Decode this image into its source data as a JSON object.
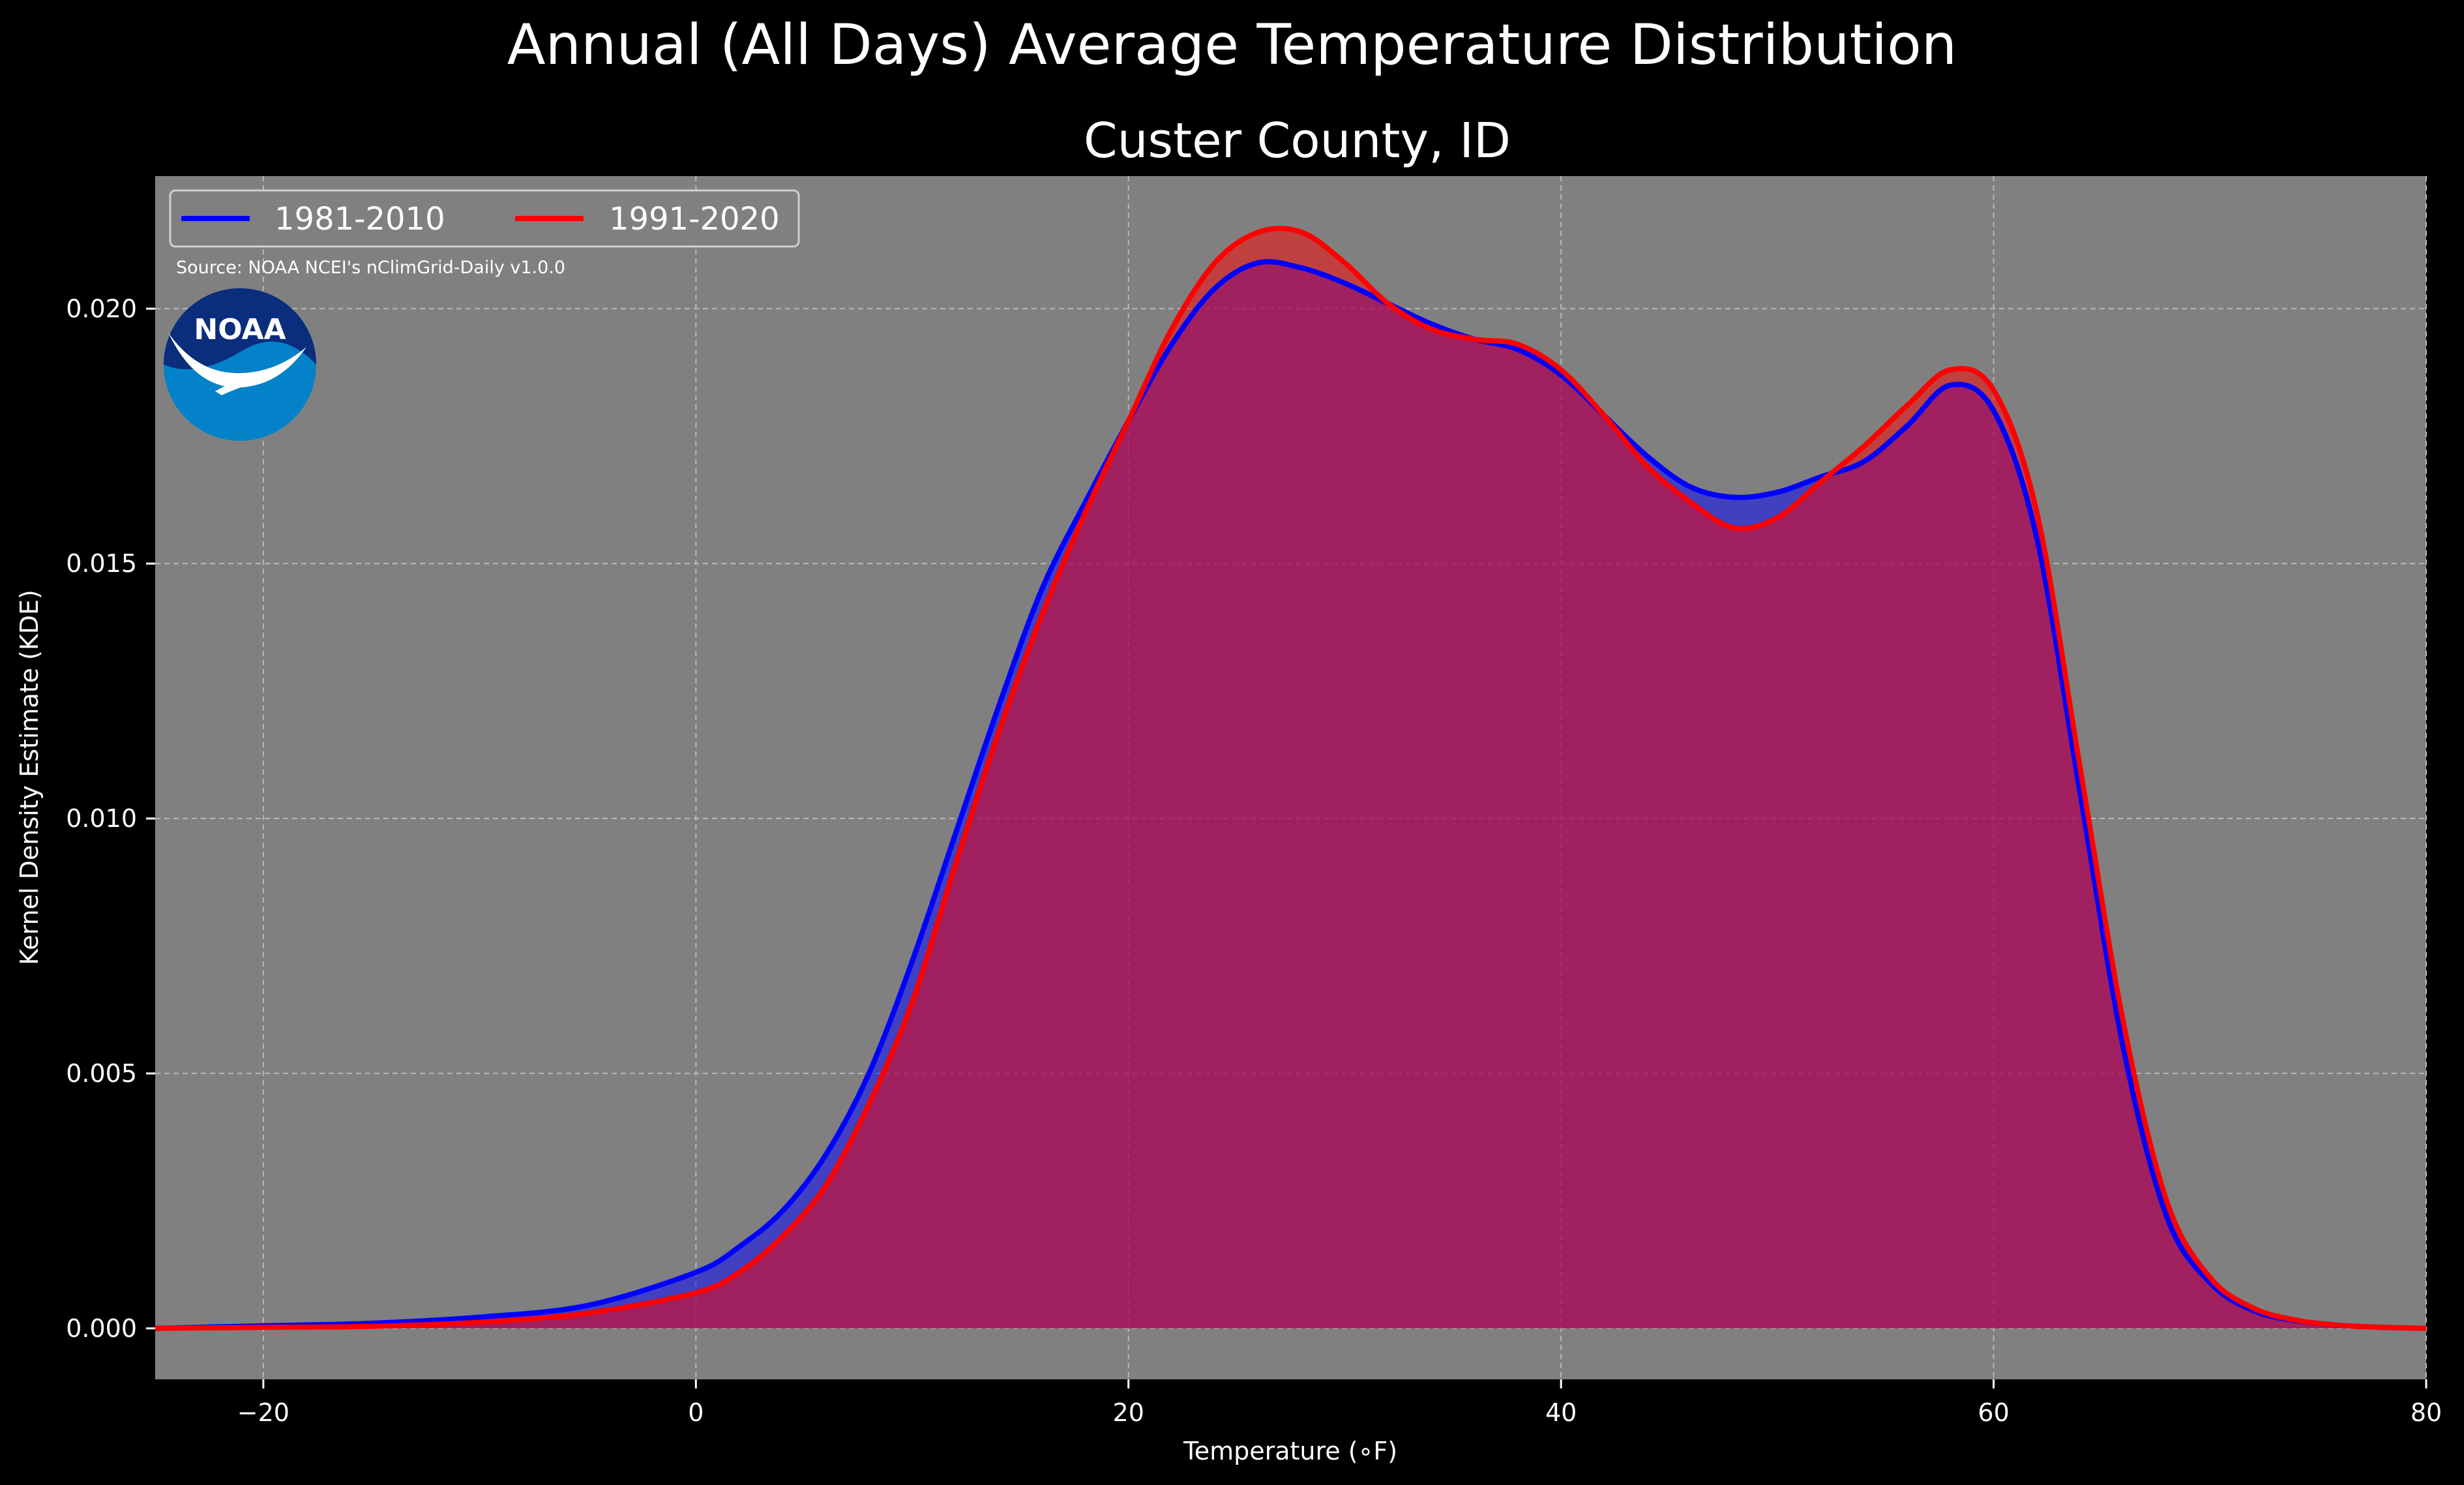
{
  "suptitle": "Annual (All Days) Average Temperature Distribution",
  "subtitle": "Custer County, ID",
  "source_note": "Source: NOAA NCEI's nClimGrid-Daily v1.0.0",
  "logo_text": "NOAA",
  "colors": {
    "background": "#000000",
    "plot_bg": "#808080",
    "series_1981": "#0000ff",
    "series_1991": "#ff0000",
    "noaa_dark": "#0a2d7c",
    "noaa_light": "#0482c9"
  },
  "chart_data": {
    "type": "area",
    "title": "Custer County, ID",
    "xlabel": "Temperature (∘F)",
    "ylabel": "Kernel Density Estimate (KDE)",
    "xlim": [
      -25,
      80
    ],
    "ylim": [
      -0.001,
      0.0226
    ],
    "xticks": [
      -20,
      0,
      20,
      40,
      60,
      80
    ],
    "xtick_labels": [
      "−20",
      "0",
      "20",
      "40",
      "60",
      "80"
    ],
    "yticks": [
      0.0,
      0.005,
      0.01,
      0.015,
      0.02
    ],
    "ytick_labels": [
      "0.000",
      "0.005",
      "0.010",
      "0.015",
      "0.020"
    ],
    "grid": true,
    "legend_position": "top-left",
    "series": [
      {
        "name": "1981-2010",
        "color": "#0000ff",
        "x": [
          -25,
          -20,
          -15,
          -10,
          -5,
          0,
          2,
          4,
          6,
          8,
          10,
          12,
          14,
          16,
          18,
          20,
          22,
          24,
          26,
          28,
          30,
          32,
          34,
          36,
          38,
          40,
          42,
          44,
          46,
          48,
          50,
          52,
          54,
          56,
          58,
          60,
          62,
          64,
          66,
          68,
          70,
          72,
          74,
          76,
          78,
          80
        ],
        "y": [
          0.0,
          5e-05,
          0.0001,
          0.00022,
          0.00045,
          0.0011,
          0.0016,
          0.0023,
          0.0034,
          0.005,
          0.0072,
          0.0097,
          0.0122,
          0.0145,
          0.0162,
          0.0178,
          0.0193,
          0.0204,
          0.0209,
          0.0208,
          0.0205,
          0.0201,
          0.0197,
          0.0194,
          0.0192,
          0.0187,
          0.0179,
          0.0171,
          0.0165,
          0.0163,
          0.0164,
          0.0167,
          0.017,
          0.0177,
          0.0185,
          0.018,
          0.0155,
          0.0105,
          0.0055,
          0.0022,
          0.0009,
          0.00035,
          0.00015,
          6e-05,
          2e-05,
          0.0
        ]
      },
      {
        "name": "1991-2020",
        "color": "#ff0000",
        "x": [
          -25,
          -20,
          -15,
          -10,
          -5,
          0,
          2,
          4,
          6,
          8,
          10,
          12,
          14,
          16,
          18,
          20,
          22,
          24,
          26,
          28,
          30,
          32,
          34,
          36,
          38,
          40,
          42,
          44,
          46,
          48,
          50,
          52,
          54,
          56,
          58,
          60,
          62,
          64,
          66,
          68,
          70,
          72,
          74,
          76,
          78,
          80
        ],
        "y": [
          0.0,
          2e-05,
          4e-05,
          0.00012,
          0.0003,
          0.0007,
          0.0011,
          0.0018,
          0.0028,
          0.0044,
          0.0064,
          0.0091,
          0.0117,
          0.014,
          0.016,
          0.0178,
          0.0196,
          0.0209,
          0.0215,
          0.0215,
          0.0209,
          0.0201,
          0.0196,
          0.0194,
          0.0193,
          0.0188,
          0.0179,
          0.0169,
          0.0162,
          0.0157,
          0.0159,
          0.0166,
          0.0173,
          0.0181,
          0.0188,
          0.0184,
          0.016,
          0.011,
          0.006,
          0.0025,
          0.001,
          0.0004,
          0.00016,
          6e-05,
          2e-05,
          0.0
        ]
      }
    ]
  }
}
